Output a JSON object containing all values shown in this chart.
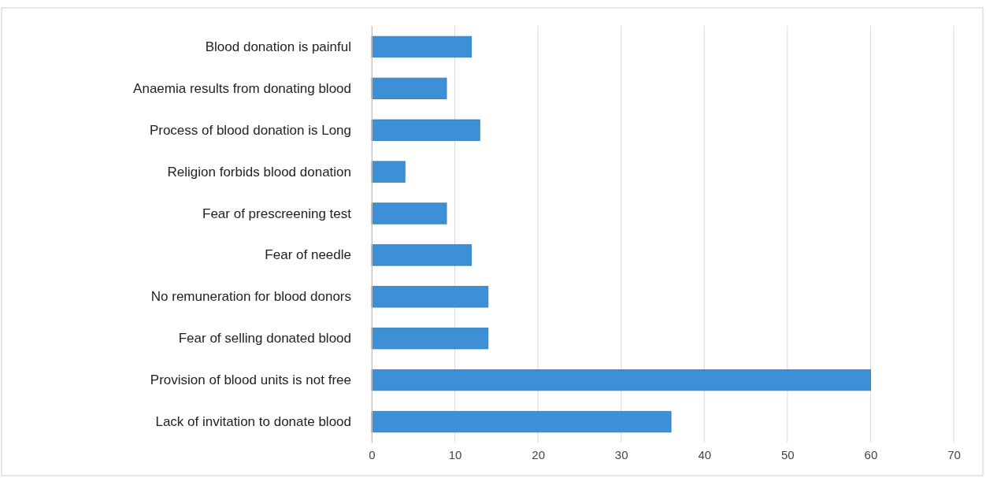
{
  "chart_data": {
    "type": "bar",
    "orientation": "horizontal",
    "categories": [
      "Blood donation is painful",
      "Anaemia results from donating blood",
      "Process of blood donation is Long",
      "Religion forbids blood donation",
      "Fear of prescreening test",
      "Fear of needle",
      "No remuneration for blood donors",
      "Fear of selling donated blood",
      "Provision of blood units is not free",
      "Lack of invitation to donate blood"
    ],
    "values": [
      12,
      9,
      13,
      4,
      9,
      12,
      14,
      14,
      60,
      36
    ],
    "color": "#3d8fd6",
    "xlim": [
      0,
      70
    ],
    "xticks": [
      0,
      10,
      20,
      30,
      40,
      50,
      60,
      70
    ],
    "grid": "x"
  }
}
